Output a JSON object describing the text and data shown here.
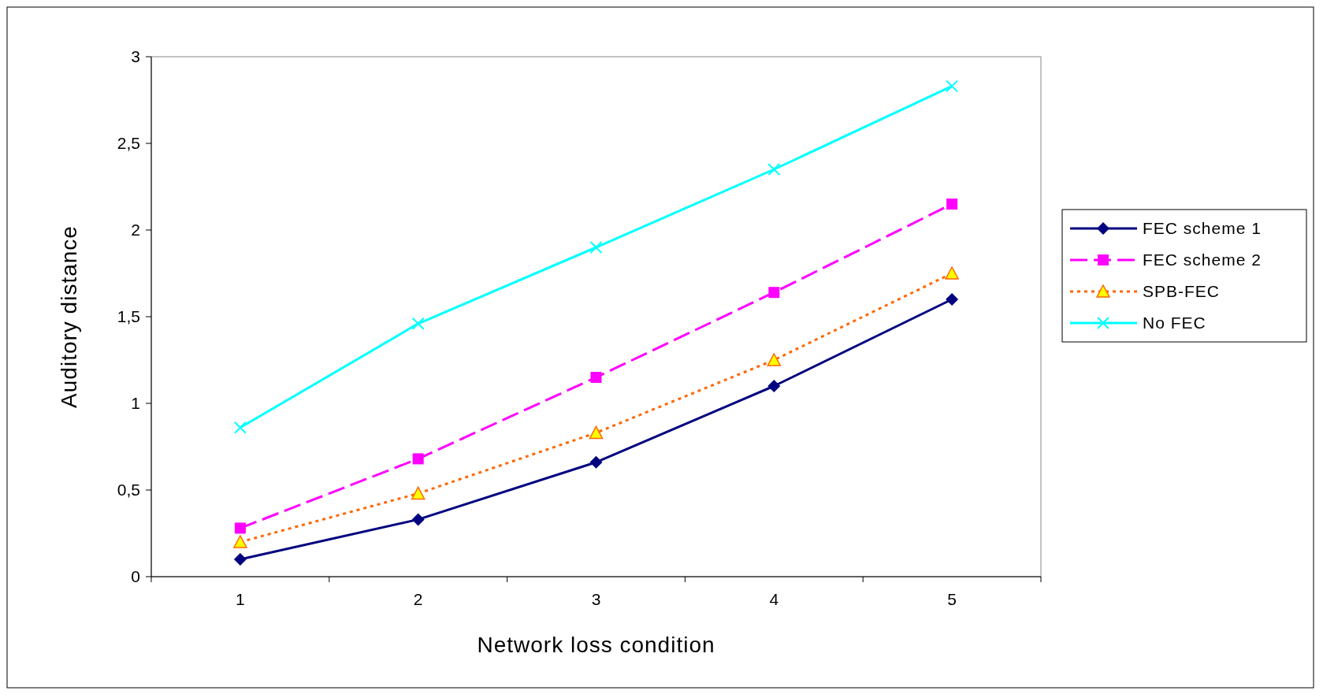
{
  "chart_data": {
    "type": "line",
    "xlabel": "Network loss condition",
    "ylabel": "Auditory distance",
    "categories": [
      "1",
      "2",
      "3",
      "4",
      "5"
    ],
    "ylim": [
      0,
      3
    ],
    "yticks": [
      {
        "value": 0,
        "label": "0"
      },
      {
        "value": 0.5,
        "label": "0,5"
      },
      {
        "value": 1,
        "label": "1"
      },
      {
        "value": 1.5,
        "label": "1,5"
      },
      {
        "value": 2,
        "label": "2"
      },
      {
        "value": 2.5,
        "label": "2,5"
      },
      {
        "value": 3,
        "label": "3"
      }
    ],
    "grid": false,
    "legend": "right",
    "series": [
      {
        "name": "FEC scheme 1",
        "color": "#000080",
        "marker": "diamond",
        "line_style": "solid",
        "values": [
          0.1,
          0.33,
          0.66,
          1.1,
          1.6
        ]
      },
      {
        "name": "FEC scheme 2",
        "color": "#ff00ff",
        "marker": "square",
        "line_style": "dashed",
        "values": [
          0.28,
          0.68,
          1.15,
          1.64,
          2.15
        ]
      },
      {
        "name": "SPB-FEC",
        "color": "#ff6600",
        "marker": "triangle",
        "line_style": "dotted",
        "values": [
          0.2,
          0.48,
          0.83,
          1.25,
          1.75
        ]
      },
      {
        "name": "No FEC",
        "color": "#00ffff",
        "marker": "cross",
        "line_style": "solid",
        "values": [
          0.86,
          1.46,
          1.9,
          2.35,
          2.83
        ]
      }
    ]
  }
}
